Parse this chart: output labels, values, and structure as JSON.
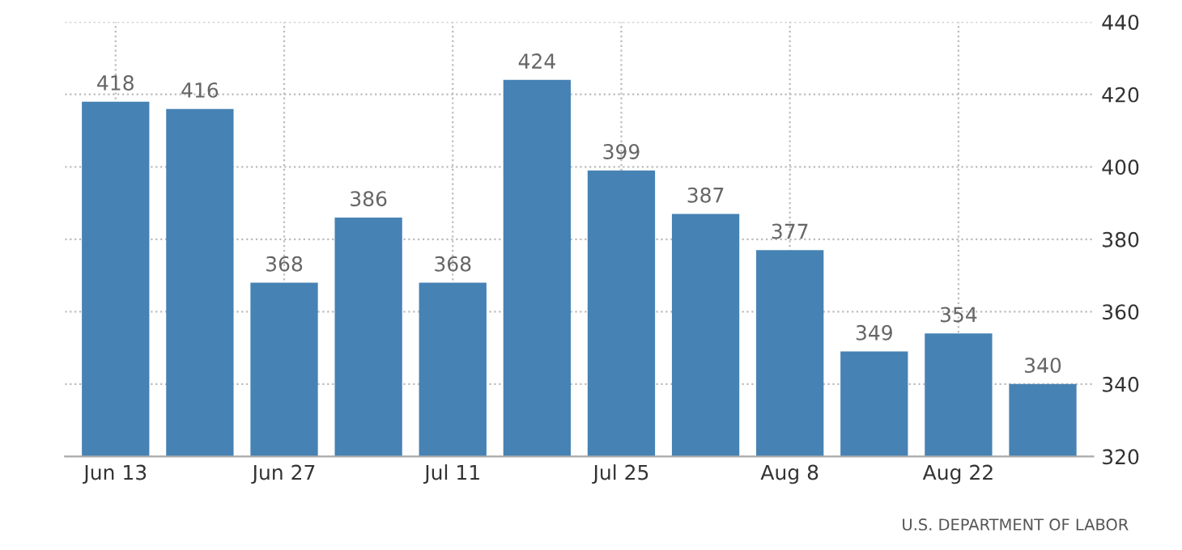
{
  "chart_data": {
    "type": "bar",
    "categories": [
      "Jun 13",
      null,
      "Jun 27",
      null,
      "Jul 11",
      null,
      "Jul 25",
      null,
      "Aug 8",
      null,
      "Aug 22",
      null
    ],
    "values": [
      418,
      416,
      368,
      386,
      368,
      424,
      399,
      387,
      377,
      349,
      354,
      340
    ],
    "color": "#4682b4",
    "ylim": [
      320,
      440
    ],
    "yticks": [
      320,
      340,
      360,
      380,
      400,
      420,
      440
    ],
    "grid": true,
    "data_labels": true,
    "annotations": [
      "U.S. DEPARTMENT OF LABOR"
    ]
  }
}
